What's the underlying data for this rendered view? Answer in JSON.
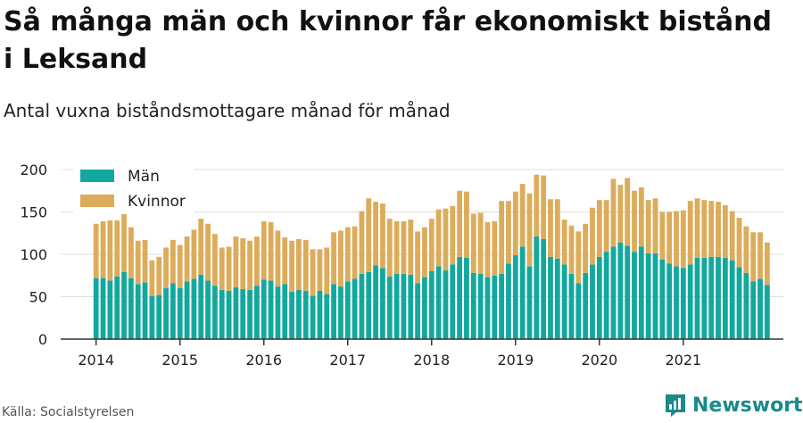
{
  "title": "Så många män och kvinnor får ekonomiskt bistånd i Leksand",
  "subtitle": "Antal vuxna biståndsmottagare månad för månad",
  "source": "Källa: Socialstyrelsen",
  "brand": {
    "name": "Newsworthy",
    "icon": "newsworthy-logo-icon"
  },
  "colors": {
    "men": "#13a89e",
    "women": "#dcac5a",
    "grid": "#dddddd",
    "axis": "#333333"
  },
  "chart_data": {
    "type": "bar",
    "stacked": true,
    "title": "",
    "xlabel": "",
    "ylabel": "",
    "ylim": [
      0,
      200
    ],
    "yticks": [
      0,
      50,
      100,
      150,
      200
    ],
    "xticks": [
      "2014",
      "2015",
      "2016",
      "2017",
      "2018",
      "2019",
      "2020",
      "2021"
    ],
    "grid": true,
    "legend": "top-left",
    "x_start": "2014-01",
    "series": [
      {
        "name": "Män",
        "color": "#13a89e",
        "values": [
          72,
          72,
          69,
          74,
          79,
          72,
          65,
          67,
          51,
          52,
          60,
          66,
          60,
          68,
          71,
          76,
          69,
          63,
          58,
          57,
          61,
          59,
          58,
          63,
          70,
          69,
          62,
          65,
          56,
          58,
          57,
          51,
          57,
          53,
          65,
          62,
          68,
          71,
          77,
          79,
          87,
          84,
          74,
          77,
          77,
          76,
          66,
          73,
          80,
          86,
          81,
          88,
          97,
          96,
          78,
          77,
          73,
          75,
          77,
          89,
          99,
          109,
          86,
          121,
          118,
          97,
          95,
          88,
          77,
          66,
          78,
          88,
          97,
          103,
          109,
          114,
          110,
          103,
          109,
          101,
          101,
          94,
          89,
          86,
          84,
          88,
          96,
          96,
          97,
          97,
          96,
          93,
          85,
          78,
          68,
          71,
          64
        ]
      },
      {
        "name": "Kvinnor",
        "color": "#dcac5a",
        "values": [
          64,
          67,
          71,
          66,
          70,
          60,
          51,
          50,
          42,
          45,
          48,
          51,
          51,
          53,
          58,
          66,
          67,
          61,
          50,
          52,
          60,
          60,
          58,
          58,
          69,
          69,
          66,
          55,
          60,
          60,
          60,
          55,
          49,
          55,
          61,
          66,
          64,
          62,
          74,
          87,
          75,
          76,
          68,
          62,
          62,
          65,
          61,
          59,
          62,
          67,
          73,
          69,
          78,
          78,
          70,
          72,
          65,
          64,
          86,
          74,
          75,
          74,
          86,
          73,
          75,
          68,
          70,
          53,
          57,
          61,
          58,
          67,
          67,
          61,
          80,
          68,
          80,
          72,
          70,
          63,
          65,
          56,
          61,
          65,
          68,
          75,
          70,
          68,
          66,
          65,
          62,
          58,
          58,
          55,
          58,
          55,
          50
        ]
      }
    ]
  }
}
